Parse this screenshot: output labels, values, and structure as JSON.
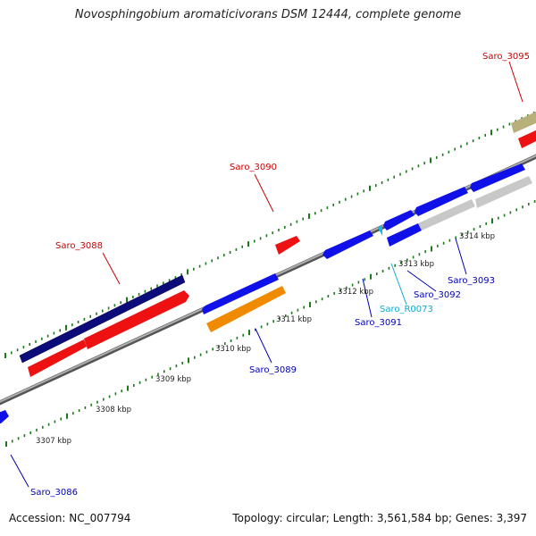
{
  "title": "Novosphingobium aromaticivorans DSM 12444, complete genome",
  "footer": {
    "accession": "Accession: NC_007794",
    "summary": "Topology: circular; Length: 3,561,584 bp; Genes: 3,397"
  },
  "scale_labels": [
    "3307 kbp",
    "3308 kbp",
    "3309 kbp",
    "3310 kbp",
    "3311 kbp",
    "3312 kbp",
    "3313 kbp",
    "3314 kbp"
  ],
  "gene_labels": {
    "saro_3086": "Saro_3086",
    "saro_3088": "Saro_3088",
    "saro_3089": "Saro_3089",
    "saro_3090": "Saro_3090",
    "saro_3091": "Saro_3091",
    "saro_3092": "Saro_3092",
    "saro_3093": "Saro_3093",
    "saro_3095": "Saro_3095",
    "saro_r0073": "Saro_R0073"
  },
  "colors": {
    "forward_gene": "#1010e8",
    "forward_dark": "#0b0b7a",
    "cds": "#ee1111",
    "orange_cds": "#f08a00",
    "grey_cds": "#c8c8c8",
    "olive_cds": "#b8b07a",
    "rna": "#19b6e6",
    "backbone": "#8a8a8a",
    "tick": "#1a7a1a",
    "label_red": "#cc0000",
    "label_blue": "#0000bb",
    "label_cyan": "#11aacc"
  }
}
